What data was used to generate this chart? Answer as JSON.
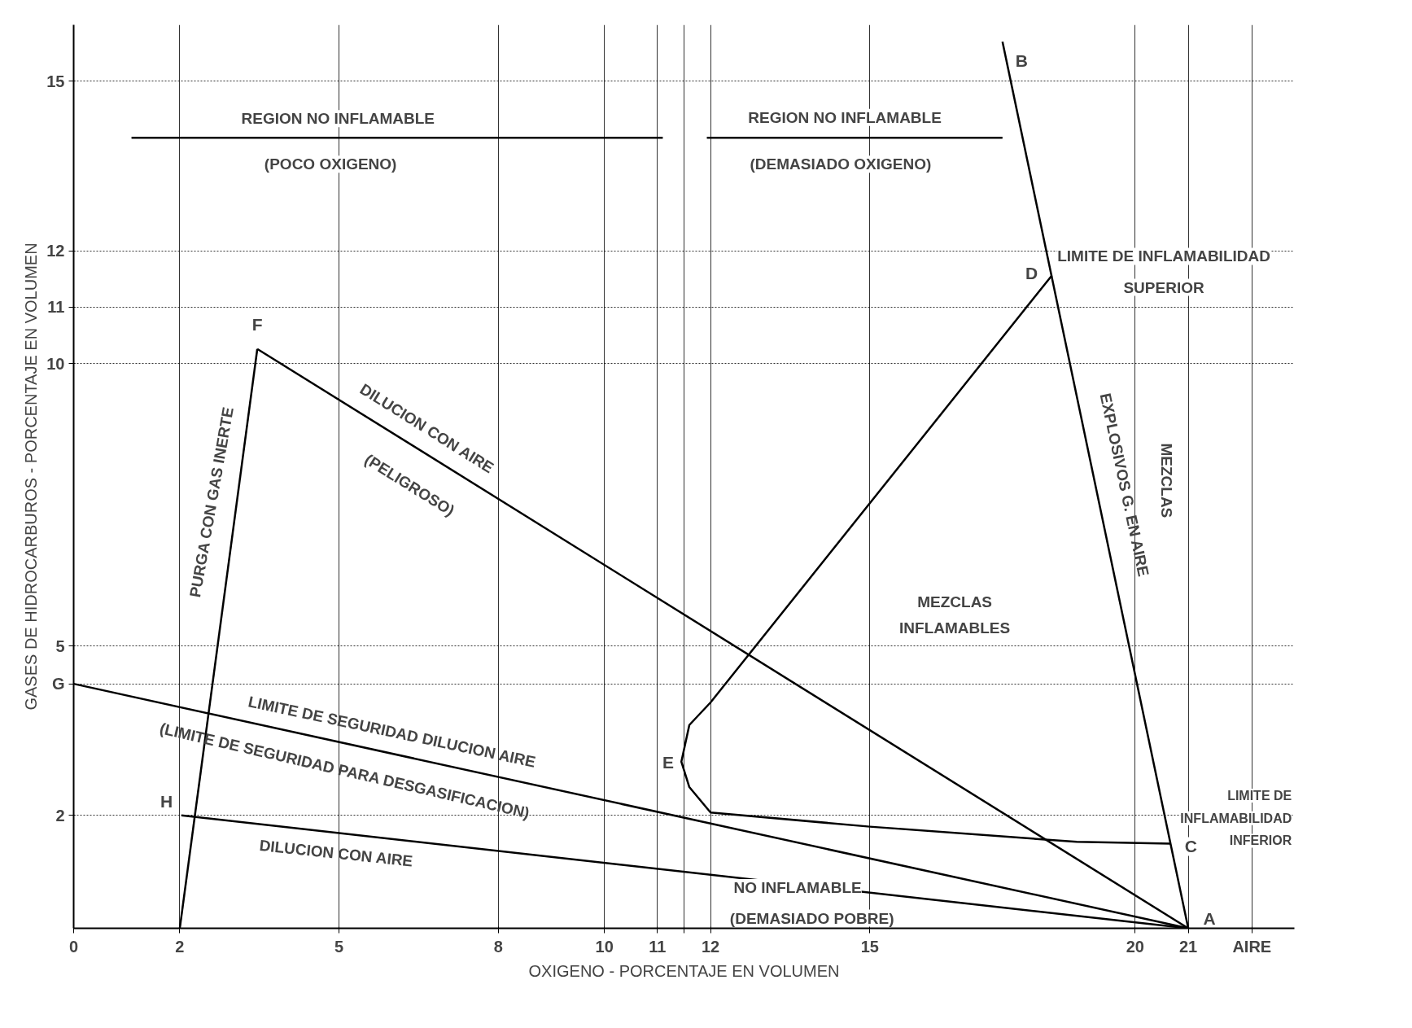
{
  "chart_data": {
    "type": "line",
    "xlabel": "OXIGENO - PORCENTAJE EN VOLUMEN",
    "ylabel": "GASES DE HIDROCARBUROS - PORCENTAJE EN VOLUMEN",
    "xlim": [
      0,
      23
    ],
    "ylim": [
      0,
      16
    ],
    "xticks": [
      0,
      2,
      5,
      8,
      10,
      11,
      {
        "value": 11.5,
        "label": null
      },
      12,
      15,
      20,
      21,
      {
        "value": 22.2,
        "label": "AIRE"
      }
    ],
    "yticks": [
      2,
      {
        "value": 4.33,
        "label": "G"
      },
      5,
      10,
      11,
      12,
      15
    ],
    "grid": true,
    "marker": "none",
    "line_style": "solid",
    "series": [
      {
        "color": "#000000",
        "x": [
          21,
          17.5
        ],
        "values": [
          0,
          15.7
        ]
      },
      {
        "color": "#000000",
        "x": [
          2,
          3.46
        ],
        "values": [
          0,
          10.26
        ]
      },
      {
        "color": "#000000",
        "x": [
          3.46,
          21
        ],
        "values": [
          10.26,
          0
        ]
      },
      {
        "color": "#000000",
        "x": [
          0,
          21
        ],
        "values": [
          4.33,
          0
        ]
      },
      {
        "color": "#000000",
        "x": [
          2.03,
          21
        ],
        "values": [
          2.0,
          0
        ]
      },
      {
        "color": "#000000",
        "x": [
          20.67,
          18.9,
          15,
          12,
          11.6,
          11.45,
          11.6,
          12,
          18.43
        ],
        "values": [
          1.5,
          1.53,
          1.8,
          2.05,
          2.5,
          2.95,
          3.6,
          4.0,
          11.56
        ]
      },
      {
        "color": "#000000",
        "x": [
          1.09,
          11.1
        ],
        "values": [
          14.0,
          14.0
        ]
      },
      {
        "color": "#000000",
        "x": [
          11.93,
          17.5
        ],
        "values": [
          14.0,
          14.0
        ]
      }
    ],
    "annotations": [
      "REGION NO INFLAMABLE",
      "(POCO OXIGENO)",
      "REGION NO INFLAMABLE",
      "(DEMASIADO OXIGENO)",
      "LIMITE DE INFLAMABILIDAD",
      "SUPERIOR",
      "F",
      "D",
      "B",
      "PURGA CON GAS INERTE",
      "DILUCION CON AIRE",
      "(PELIGROSO)",
      "EXPLOSIVOS G. EN AIRE",
      "MEZCLAS",
      "MEZCLAS",
      "INFLAMABLES",
      "LIMITE DE SEGURIDAD DILUCION AIRE",
      "(LIMITE DE SEGURIDAD PARA DESGASIFICACION)",
      "DILUCION CON AIRE",
      "E",
      "H",
      "LIMITE DE",
      "INFLAMABILIDAD",
      "INFERIOR",
      "C",
      "NO INFLAMABLE",
      "(DEMASIADO POBRE)",
      "A"
    ]
  }
}
